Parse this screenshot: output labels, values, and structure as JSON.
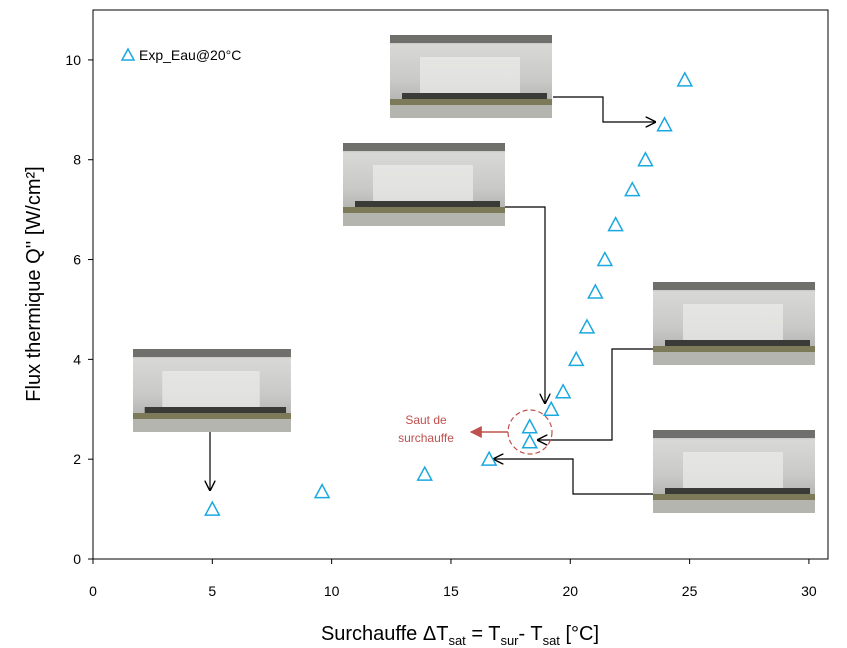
{
  "chart_data": {
    "type": "scatter",
    "x_label": [
      "Surchauffe  ΔT",
      "sat",
      " = T",
      "sur",
      "- T",
      "sat",
      " [°C]"
    ],
    "y_label": "Flux thermique Q'' [W/cm²]",
    "x": [
      5.0,
      9.6,
      13.9,
      16.6,
      18.3,
      18.3,
      19.2,
      19.7,
      20.25,
      20.7,
      21.05,
      21.45,
      21.9,
      22.6,
      23.15,
      23.95,
      24.8
    ],
    "series": [
      {
        "name": "Exp_Eau@20°C",
        "color": "#1aa8e0",
        "values": [
          1.0,
          1.35,
          1.7,
          2.0,
          2.35,
          2.65,
          3.0,
          3.35,
          4.0,
          4.65,
          5.35,
          6.0,
          6.7,
          7.4,
          8.0,
          8.7,
          9.6
        ]
      }
    ],
    "xlim": [
      0,
      30.8
    ],
    "xticks": [
      0,
      5,
      10,
      15,
      20,
      25,
      30
    ],
    "ylim": [
      0,
      11
    ],
    "yticks": [
      0,
      2,
      4,
      6,
      8,
      10
    ],
    "legend": "upper left",
    "annotation": [
      "Saut de",
      "surchauffe"
    ]
  }
}
